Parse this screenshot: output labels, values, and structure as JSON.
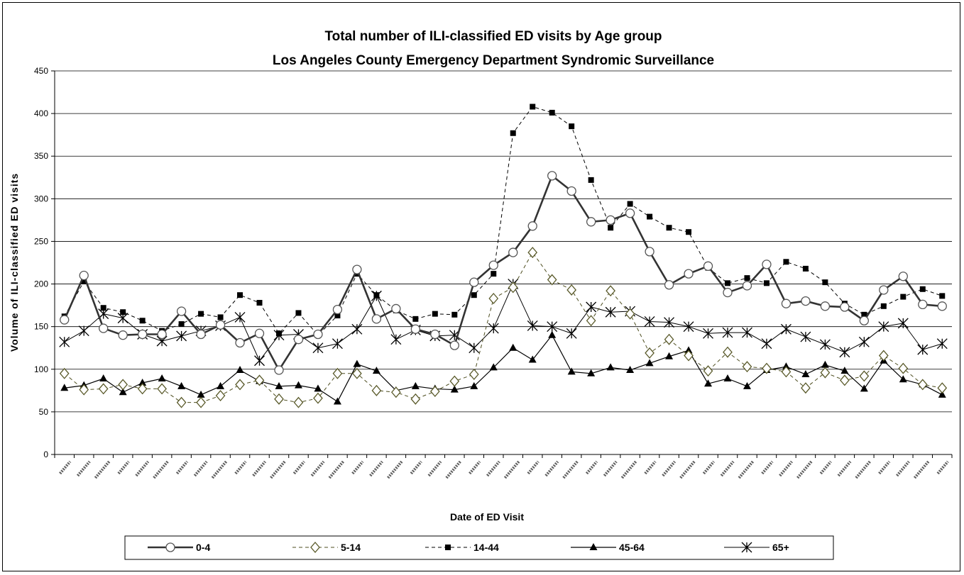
{
  "chart_data": {
    "type": "line",
    "title": "Total number of ILI-classified ED visits by Age group",
    "subtitle": "Los Angeles County Emergency Department Syndromic Surveillance",
    "xlabel": "Date of ED Visit",
    "ylabel": "Volume of ILI-classified ED visits",
    "ylim": [
      0,
      450
    ],
    "yticks": [
      0,
      50,
      100,
      150,
      200,
      250,
      300,
      350,
      400,
      450
    ],
    "grid": "horizontal",
    "legend_position": "bottom",
    "x_count": 46,
    "series": [
      {
        "name": "0-4",
        "color": "#333333",
        "line": "solid-thick",
        "marker": "open-circle",
        "values": [
          158,
          210,
          148,
          140,
          141,
          141,
          168,
          141,
          152,
          131,
          142,
          99,
          135,
          141,
          170,
          217,
          159,
          171,
          147,
          141,
          128,
          202,
          222,
          237,
          268,
          327,
          309,
          273,
          275,
          283,
          238,
          199,
          212,
          221,
          190,
          198,
          223,
          177,
          180,
          174,
          173,
          157,
          193,
          209,
          176,
          174
        ]
      },
      {
        "name": "5-14",
        "color": "#4d4d1f",
        "line": "dashed",
        "marker": "open-diamond",
        "values": [
          95,
          76,
          77,
          82,
          77,
          77,
          61,
          61,
          69,
          82,
          87,
          65,
          61,
          66,
          95,
          95,
          75,
          73,
          65,
          74,
          86,
          94,
          183,
          196,
          237,
          205,
          193,
          157,
          192,
          165,
          119,
          135,
          116,
          98,
          120,
          103,
          101,
          97,
          78,
          96,
          87,
          92,
          116,
          101,
          82,
          78
        ]
      },
      {
        "name": "14-44",
        "color": "#000000",
        "line": "dashed",
        "marker": "filled-square",
        "values": [
          162,
          203,
          172,
          167,
          157,
          145,
          153,
          165,
          161,
          187,
          178,
          142,
          166,
          140,
          163,
          212,
          187,
          169,
          159,
          165,
          164,
          187,
          212,
          377,
          408,
          401,
          385,
          322,
          266,
          294,
          279,
          266,
          261,
          219,
          201,
          207,
          201,
          226,
          218,
          202,
          177,
          164,
          174,
          185,
          194,
          186
        ]
      },
      {
        "name": "45-64",
        "color": "#000000",
        "line": "solid",
        "marker": "filled-triangle",
        "values": [
          78,
          81,
          89,
          73,
          84,
          89,
          80,
          70,
          80,
          99,
          86,
          80,
          81,
          77,
          62,
          106,
          98,
          75,
          80,
          77,
          76,
          80,
          102,
          125,
          111,
          140,
          97,
          95,
          102,
          99,
          107,
          115,
          122,
          83,
          89,
          80,
          99,
          103,
          94,
          105,
          98,
          77,
          110,
          88,
          82,
          70
        ]
      },
      {
        "name": "65+",
        "color": "#000000",
        "line": "solid-thin",
        "marker": "asterisk",
        "values": [
          132,
          145,
          165,
          160,
          141,
          133,
          139,
          145,
          151,
          161,
          110,
          140,
          141,
          125,
          130,
          147,
          186,
          135,
          146,
          139,
          140,
          125,
          148,
          200,
          151,
          150,
          142,
          173,
          167,
          168,
          156,
          155,
          150,
          142,
          143,
          143,
          130,
          147,
          138,
          129,
          120,
          132,
          150,
          154,
          123,
          130
        ]
      }
    ]
  }
}
